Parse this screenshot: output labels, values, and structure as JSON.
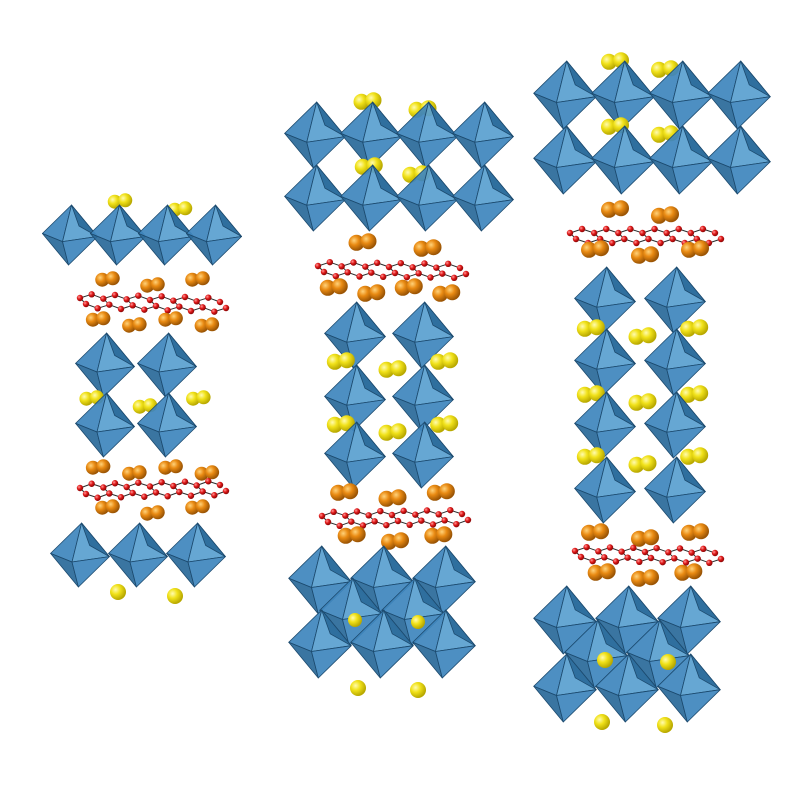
{
  "figure": {
    "description_free": true,
    "structures": [
      {
        "id": "structure-1",
        "layers": [
          "octahedra-single",
          "molecular",
          "octahedra-double",
          "molecular",
          "octahedra-single"
        ]
      },
      {
        "id": "structure-2",
        "layers": [
          "octahedra-double",
          "molecular",
          "octahedra-triple",
          "molecular",
          "octahedra-double"
        ]
      },
      {
        "id": "structure-3",
        "layers": [
          "octahedra-double",
          "molecular",
          "octahedra-quad",
          "molecular",
          "octahedra-double"
        ]
      }
    ],
    "colors": {
      "octahedron_light": "#5aa0d0",
      "octahedron_mid": "#3f86bd",
      "octahedron_dark": "#2b6a9a",
      "octahedron_edge": "#1c4a6e",
      "cation_yellow": "#f1e21a",
      "cation_orange": "#e98a12",
      "anion_red": "#e01818",
      "bond": "#2b2b2b",
      "background": "#ffffff"
    }
  }
}
